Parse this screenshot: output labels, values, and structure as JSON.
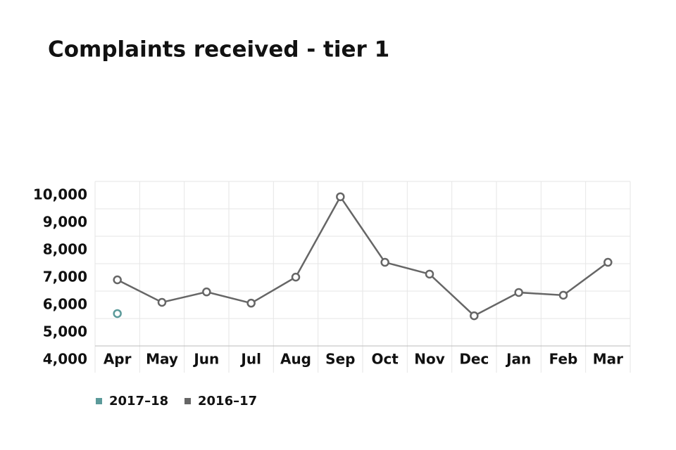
{
  "chart_data": {
    "type": "line",
    "title": "Complaints received - tier 1",
    "categories": [
      "Apr",
      "May",
      "Jun",
      "Jul",
      "Aug",
      "Sep",
      "Oct",
      "Nov",
      "Dec",
      "Jan",
      "Feb",
      "Mar"
    ],
    "series": [
      {
        "name": "2017–18",
        "color": "#5b9a9a",
        "values": [
          5180,
          null,
          null,
          null,
          null,
          null,
          null,
          null,
          null,
          null,
          null,
          null
        ]
      },
      {
        "name": "2016–17",
        "color": "#666666",
        "values": [
          6410,
          5590,
          5970,
          5560,
          6510,
          9440,
          7050,
          6620,
          5100,
          5950,
          5850,
          7050
        ]
      }
    ],
    "ylim": [
      4000,
      10000
    ],
    "yticks": [
      {
        "value": 4000,
        "label": "4,000"
      },
      {
        "value": 5000,
        "label": "5,000"
      },
      {
        "value": 6000,
        "label": "6,000"
      },
      {
        "value": 7000,
        "label": "7,000"
      },
      {
        "value": 8000,
        "label": "8,000"
      },
      {
        "value": 9000,
        "label": "9,000"
      },
      {
        "value": 10000,
        "label": "10,000"
      }
    ],
    "grid": true
  }
}
